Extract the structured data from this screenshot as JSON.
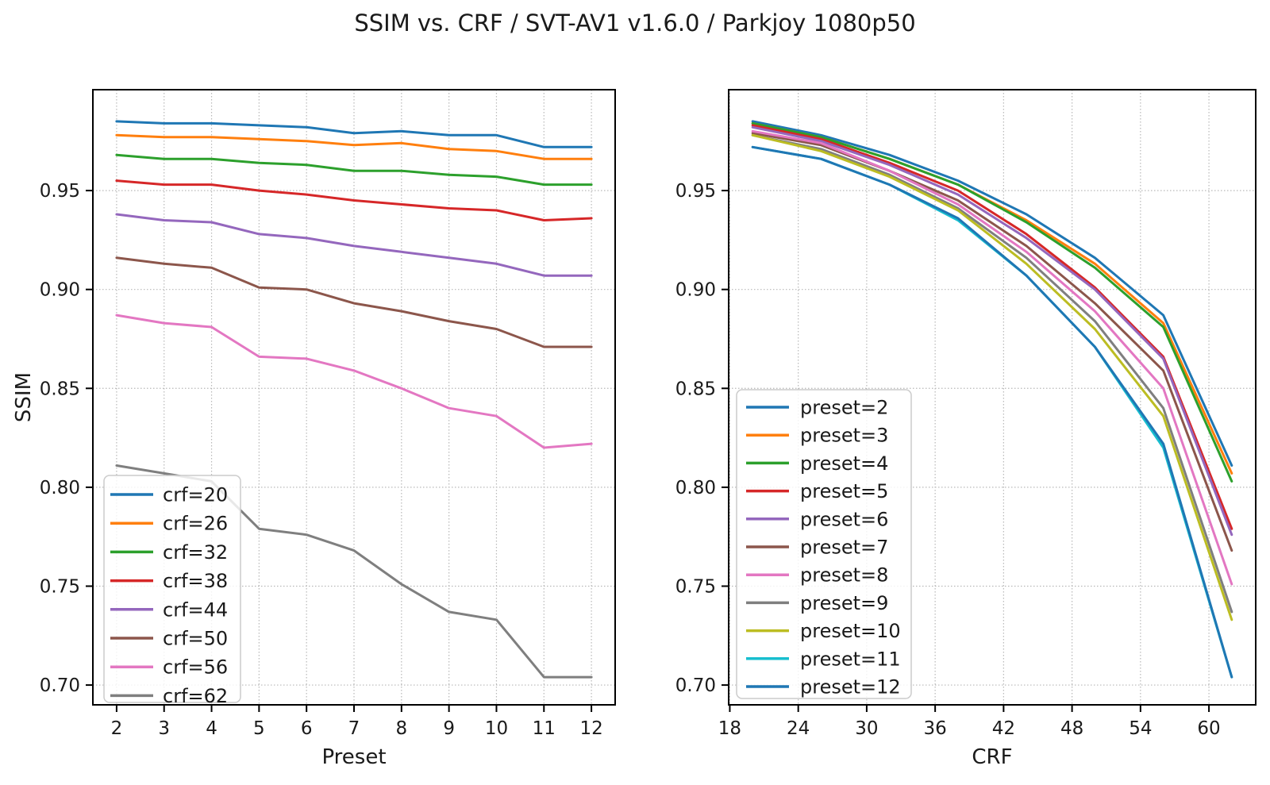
{
  "title": "SSIM vs. CRF / SVT-AV1 v1.6.0 / Parkjoy 1080p50",
  "text_color": "#1a1a1a",
  "background_color": "#ffffff",
  "grid_color": "#b8b8b8",
  "chart_data": [
    {
      "id": "ssim-vs-preset",
      "type": "line",
      "title": "",
      "xlabel": "Preset",
      "ylabel": "SSIM",
      "grid": true,
      "legend_position": "lower left",
      "x": [
        2,
        3,
        4,
        5,
        6,
        7,
        8,
        9,
        10,
        11,
        12
      ],
      "xticks": [
        2,
        3,
        4,
        5,
        6,
        7,
        8,
        9,
        10,
        11,
        12
      ],
      "xtick_labels": [
        "2",
        "3",
        "4",
        "5",
        "6",
        "7",
        "8",
        "9",
        "10",
        "11",
        "12"
      ],
      "yticks": [
        0.7,
        0.75,
        0.8,
        0.85,
        0.9,
        0.95
      ],
      "ytick_labels": [
        "0.70",
        "0.75",
        "0.80",
        "0.85",
        "0.90",
        "0.95"
      ],
      "xlim": [
        1.5,
        12.5
      ],
      "ylim": [
        0.69,
        1.001
      ],
      "series": [
        {
          "name": "crf=20",
          "color": "#1f77b4",
          "values": [
            0.985,
            0.984,
            0.984,
            0.983,
            0.982,
            0.979,
            0.98,
            0.978,
            0.978,
            0.972,
            0.972
          ]
        },
        {
          "name": "crf=26",
          "color": "#ff7f0e",
          "values": [
            0.978,
            0.977,
            0.977,
            0.976,
            0.975,
            0.973,
            0.974,
            0.971,
            0.97,
            0.966,
            0.966
          ]
        },
        {
          "name": "crf=32",
          "color": "#2ca02c",
          "values": [
            0.968,
            0.966,
            0.966,
            0.964,
            0.963,
            0.96,
            0.96,
            0.958,
            0.957,
            0.953,
            0.953
          ]
        },
        {
          "name": "crf=38",
          "color": "#d62728",
          "values": [
            0.955,
            0.953,
            0.953,
            0.95,
            0.948,
            0.945,
            0.943,
            0.941,
            0.94,
            0.935,
            0.936
          ]
        },
        {
          "name": "crf=44",
          "color": "#9467bd",
          "values": [
            0.938,
            0.935,
            0.934,
            0.928,
            0.926,
            0.922,
            0.919,
            0.916,
            0.913,
            0.907,
            0.907
          ]
        },
        {
          "name": "crf=50",
          "color": "#8c564b",
          "values": [
            0.916,
            0.913,
            0.911,
            0.901,
            0.9,
            0.893,
            0.889,
            0.884,
            0.88,
            0.871,
            0.871
          ]
        },
        {
          "name": "crf=56",
          "color": "#e377c2",
          "values": [
            0.887,
            0.883,
            0.881,
            0.866,
            0.865,
            0.859,
            0.85,
            0.84,
            0.836,
            0.82,
            0.822
          ]
        },
        {
          "name": "crf=62",
          "color": "#7f7f7f",
          "values": [
            0.811,
            0.807,
            0.803,
            0.779,
            0.776,
            0.768,
            0.751,
            0.737,
            0.733,
            0.704,
            0.704
          ]
        }
      ]
    },
    {
      "id": "ssim-vs-crf",
      "type": "line",
      "title": "",
      "xlabel": "CRF",
      "ylabel": "",
      "grid": true,
      "legend_position": "lower left",
      "x": [
        20,
        26,
        32,
        38,
        44,
        50,
        56,
        62
      ],
      "xticks": [
        18,
        24,
        30,
        36,
        42,
        48,
        54,
        60
      ],
      "xtick_labels": [
        "18",
        "24",
        "30",
        "36",
        "42",
        "48",
        "54",
        "60"
      ],
      "yticks": [
        0.7,
        0.75,
        0.8,
        0.85,
        0.9,
        0.95
      ],
      "ytick_labels": [
        "0.70",
        "0.75",
        "0.80",
        "0.85",
        "0.90",
        "0.95"
      ],
      "xlim": [
        17.9,
        64.1
      ],
      "ylim": [
        0.69,
        1.001
      ],
      "series": [
        {
          "name": "preset=2",
          "color": "#1f77b4",
          "values": [
            0.985,
            0.978,
            0.968,
            0.955,
            0.938,
            0.916,
            0.887,
            0.811
          ]
        },
        {
          "name": "preset=3",
          "color": "#ff7f0e",
          "values": [
            0.984,
            0.977,
            0.966,
            0.953,
            0.935,
            0.913,
            0.883,
            0.807
          ]
        },
        {
          "name": "preset=4",
          "color": "#2ca02c",
          "values": [
            0.984,
            0.977,
            0.966,
            0.953,
            0.934,
            0.911,
            0.881,
            0.803
          ]
        },
        {
          "name": "preset=5",
          "color": "#d62728",
          "values": [
            0.983,
            0.976,
            0.964,
            0.95,
            0.928,
            0.901,
            0.866,
            0.779
          ]
        },
        {
          "name": "preset=6",
          "color": "#9467bd",
          "values": [
            0.982,
            0.975,
            0.963,
            0.948,
            0.926,
            0.9,
            0.865,
            0.776
          ]
        },
        {
          "name": "preset=7",
          "color": "#8c564b",
          "values": [
            0.979,
            0.973,
            0.96,
            0.945,
            0.922,
            0.893,
            0.859,
            0.768
          ]
        },
        {
          "name": "preset=8",
          "color": "#e377c2",
          "values": [
            0.98,
            0.974,
            0.96,
            0.943,
            0.919,
            0.889,
            0.85,
            0.751
          ]
        },
        {
          "name": "preset=9",
          "color": "#7f7f7f",
          "values": [
            0.978,
            0.971,
            0.958,
            0.941,
            0.916,
            0.884,
            0.84,
            0.737
          ]
        },
        {
          "name": "preset=10",
          "color": "#bcbd22",
          "values": [
            0.978,
            0.97,
            0.957,
            0.94,
            0.913,
            0.88,
            0.836,
            0.733
          ]
        },
        {
          "name": "preset=11",
          "color": "#17becf",
          "values": [
            0.972,
            0.966,
            0.953,
            0.935,
            0.907,
            0.871,
            0.82,
            0.704
          ]
        },
        {
          "name": "preset=12",
          "color": "#1f77b4",
          "values": [
            0.972,
            0.966,
            0.953,
            0.936,
            0.907,
            0.871,
            0.822,
            0.704
          ]
        }
      ]
    }
  ]
}
